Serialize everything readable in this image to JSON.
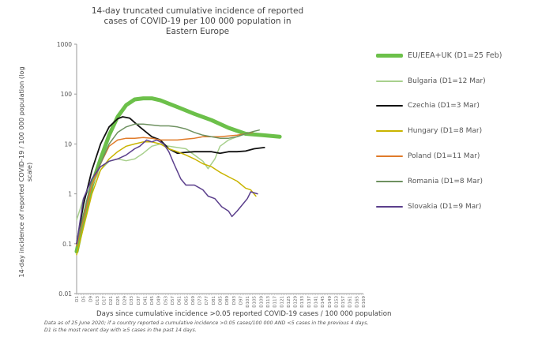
{
  "chart_data": {
    "type": "line",
    "title_lines": [
      "14-day truncated cumulative incidence of reported",
      "cases of COVID-19 per 100 000 population in",
      "Eastern Europe"
    ],
    "xlabel": "Days since cumulative incidence >0.05 reported COVID-19 cases / 100 000 population",
    "ylabel": "14-day incidence of reported COVID-19 / 100 000 population (log scale)",
    "y_scale": "log",
    "ylim": [
      0.01,
      1000
    ],
    "y_ticks": [
      "1000",
      "100",
      "10",
      "1",
      "0.1",
      "0.01"
    ],
    "xlim": [
      1,
      169
    ],
    "x_ticks": [
      "D1",
      "D5",
      "D9",
      "D13",
      "D17",
      "D21",
      "D25",
      "D29",
      "D33",
      "D37",
      "D41",
      "D45",
      "D49",
      "D53",
      "D57",
      "D61",
      "D65",
      "D69",
      "D73",
      "D77",
      "D81",
      "D85",
      "D89",
      "D93",
      "D97",
      "D101",
      "D105",
      "D109",
      "D113",
      "D117",
      "D121",
      "D125",
      "D129",
      "D133",
      "D137",
      "D141",
      "D145",
      "D149",
      "D153",
      "D157",
      "D161",
      "D165",
      "D169"
    ],
    "grid": false,
    "legend_placement": "right",
    "series": [
      {
        "name": "EU/EEA+UK  (D1=25 Feb)",
        "color": "#6cc04a",
        "width": 5,
        "points": [
          [
            1,
            0.07
          ],
          [
            5,
            0.3
          ],
          [
            10,
            1.5
          ],
          [
            15,
            5
          ],
          [
            20,
            15
          ],
          [
            25,
            35
          ],
          [
            30,
            60
          ],
          [
            35,
            78
          ],
          [
            40,
            82
          ],
          [
            45,
            82
          ],
          [
            50,
            75
          ],
          [
            60,
            55
          ],
          [
            70,
            40
          ],
          [
            80,
            30
          ],
          [
            90,
            21
          ],
          [
            100,
            16
          ],
          [
            110,
            15
          ],
          [
            120,
            14
          ]
        ]
      },
      {
        "name": "Bulgaria  (D1=12 Mar)",
        "color": "#a8d08d",
        "width": 1.5,
        "points": [
          [
            1,
            0.3
          ],
          [
            5,
            0.8
          ],
          [
            10,
            1.5
          ],
          [
            15,
            3
          ],
          [
            20,
            4.5
          ],
          [
            25,
            5
          ],
          [
            30,
            4.6
          ],
          [
            35,
            5
          ],
          [
            40,
            6.5
          ],
          [
            45,
            9
          ],
          [
            50,
            10
          ],
          [
            55,
            9
          ],
          [
            60,
            8.5
          ],
          [
            65,
            8
          ],
          [
            70,
            6
          ],
          [
            75,
            4.5
          ],
          [
            78,
            3.2
          ],
          [
            82,
            5
          ],
          [
            85,
            9
          ],
          [
            90,
            12
          ],
          [
            95,
            14
          ],
          [
            100,
            16
          ],
          [
            105,
            18
          ]
        ]
      },
      {
        "name": "Czechia  (D1=3 Mar)",
        "color": "#111111",
        "width": 1.8,
        "points": [
          [
            1,
            0.1
          ],
          [
            5,
            0.6
          ],
          [
            10,
            3
          ],
          [
            15,
            10
          ],
          [
            20,
            22
          ],
          [
            25,
            32
          ],
          [
            28,
            35
          ],
          [
            32,
            33
          ],
          [
            38,
            22
          ],
          [
            45,
            14
          ],
          [
            50,
            12
          ],
          [
            55,
            8
          ],
          [
            60,
            6.5
          ],
          [
            65,
            6.8
          ],
          [
            70,
            7
          ],
          [
            75,
            7
          ],
          [
            80,
            7
          ],
          [
            85,
            6.5
          ],
          [
            90,
            7
          ],
          [
            95,
            7
          ],
          [
            100,
            7.2
          ],
          [
            105,
            8
          ],
          [
            111,
            8.5
          ]
        ]
      },
      {
        "name": "Hungary  (D1=8 Mar)",
        "color": "#c9b400",
        "width": 1.5,
        "points": [
          [
            1,
            0.06
          ],
          [
            10,
            1
          ],
          [
            15,
            3
          ],
          [
            20,
            5
          ],
          [
            25,
            7
          ],
          [
            30,
            9
          ],
          [
            35,
            10
          ],
          [
            40,
            11
          ],
          [
            45,
            11
          ],
          [
            50,
            10
          ],
          [
            55,
            8
          ],
          [
            60,
            7
          ],
          [
            65,
            6
          ],
          [
            70,
            5
          ],
          [
            75,
            4
          ],
          [
            80,
            3.5
          ],
          [
            85,
            2.7
          ],
          [
            90,
            2.2
          ],
          [
            95,
            1.8
          ],
          [
            100,
            1.3
          ],
          [
            103,
            1.2
          ],
          [
            106,
            0.9
          ]
        ]
      },
      {
        "name": "Poland  (D1=11 Mar)",
        "color": "#e07b2a",
        "width": 1.5,
        "points": [
          [
            1,
            0.09
          ],
          [
            10,
            1.5
          ],
          [
            15,
            4
          ],
          [
            20,
            9
          ],
          [
            25,
            12
          ],
          [
            30,
            13
          ],
          [
            35,
            13
          ],
          [
            40,
            13.5
          ],
          [
            45,
            13
          ],
          [
            50,
            12
          ],
          [
            55,
            12
          ],
          [
            60,
            12
          ],
          [
            65,
            12.5
          ],
          [
            70,
            13
          ],
          [
            75,
            14
          ],
          [
            80,
            14
          ],
          [
            85,
            14
          ],
          [
            90,
            14.5
          ],
          [
            95,
            15
          ],
          [
            100,
            16
          ],
          [
            104,
            17
          ]
        ]
      },
      {
        "name": "Romania  (D1=8 Mar)",
        "color": "#6e9160",
        "width": 1.5,
        "points": [
          [
            1,
            0.1
          ],
          [
            10,
            2
          ],
          [
            15,
            4
          ],
          [
            20,
            10
          ],
          [
            25,
            17
          ],
          [
            30,
            22
          ],
          [
            35,
            25
          ],
          [
            40,
            25
          ],
          [
            45,
            24
          ],
          [
            50,
            23
          ],
          [
            55,
            23
          ],
          [
            60,
            22
          ],
          [
            65,
            20
          ],
          [
            70,
            17
          ],
          [
            75,
            15
          ],
          [
            80,
            14
          ],
          [
            85,
            13
          ],
          [
            90,
            13
          ],
          [
            95,
            14
          ],
          [
            100,
            16
          ],
          [
            105,
            18
          ],
          [
            108,
            19
          ]
        ]
      },
      {
        "name": "Slovakia  (D1=9 Mar)",
        "color": "#5b3f8c",
        "width": 1.5,
        "points": [
          [
            1,
            0.1
          ],
          [
            5,
            0.8
          ],
          [
            10,
            2
          ],
          [
            15,
            3.5
          ],
          [
            20,
            4.5
          ],
          [
            25,
            5
          ],
          [
            30,
            6
          ],
          [
            35,
            8
          ],
          [
            38,
            9
          ],
          [
            42,
            12
          ],
          [
            45,
            11
          ],
          [
            48,
            12
          ],
          [
            52,
            10
          ],
          [
            55,
            7
          ],
          [
            58,
            4
          ],
          [
            62,
            2
          ],
          [
            65,
            1.5
          ],
          [
            70,
            1.5
          ],
          [
            75,
            1.2
          ],
          [
            78,
            0.9
          ],
          [
            82,
            0.8
          ],
          [
            86,
            0.55
          ],
          [
            90,
            0.45
          ],
          [
            92,
            0.35
          ],
          [
            95,
            0.45
          ],
          [
            98,
            0.6
          ],
          [
            101,
            0.8
          ],
          [
            103,
            1.1
          ],
          [
            107,
            1.0
          ]
        ]
      }
    ]
  },
  "footnote_lines": [
    "Data as of 25 June 2020; if a country reported a cumulative incidence >0.05 cases/100 000 AND <5 cases in the previous 4 days,",
    "D1 is the most recent day with ≥5 cases in the past 14 days."
  ]
}
